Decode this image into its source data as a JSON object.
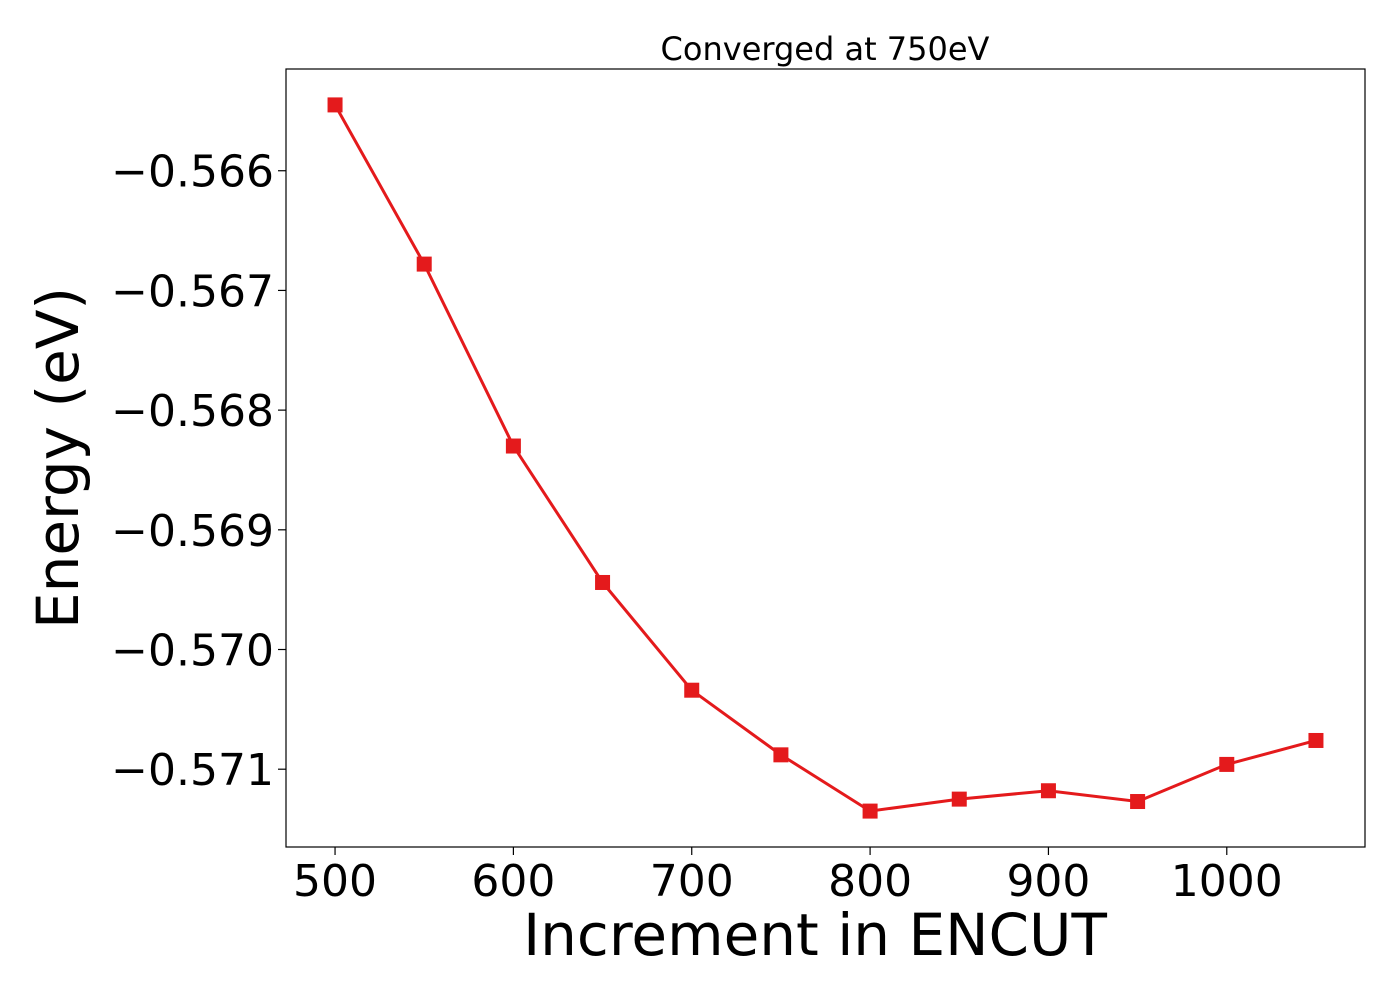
{
  "chart_data": {
    "type": "line",
    "title": "Converged at 750eV",
    "xlabel": "Increment in ENCUT",
    "ylabel": "Energy (eV)",
    "x": [
      500,
      550,
      600,
      650,
      700,
      750,
      800,
      850,
      900,
      950,
      1000,
      1050
    ],
    "series": [
      {
        "values": [
          -0.56545,
          -0.56678,
          -0.5683,
          -0.56944,
          -0.57034,
          -0.57088,
          -0.57135,
          -0.57125,
          -0.57118,
          -0.57127,
          -0.57096,
          -0.57076
        ],
        "color": "#e41a1c",
        "marker": "square"
      }
    ],
    "xticks": [
      500,
      600,
      700,
      800,
      900,
      1000
    ],
    "xtick_labels": [
      "500",
      "600",
      "700",
      "800",
      "900",
      "1000"
    ],
    "yticks": [
      -0.566,
      -0.567,
      -0.568,
      -0.569,
      -0.57,
      -0.571
    ],
    "ytick_labels": [
      "−0.566",
      "−0.567",
      "−0.568",
      "−0.569",
      "−0.570",
      "−0.571"
    ],
    "xlim": [
      472.5,
      1077.5
    ],
    "ylim": [
      -0.57165,
      -0.56515
    ],
    "grid": false,
    "legend": false
  }
}
